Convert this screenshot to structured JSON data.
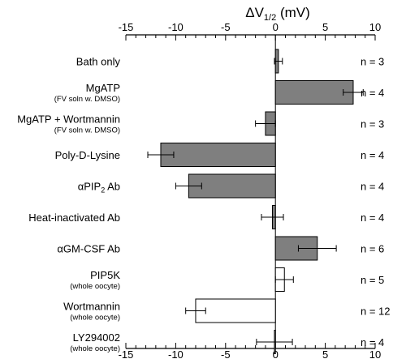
{
  "chart_data": {
    "type": "bar",
    "orientation": "horizontal",
    "title_main": "ΔV",
    "title_sub": "1/2",
    "title_unit": " (mV)",
    "xlim": [
      -15,
      10
    ],
    "major_ticks": [
      -15,
      -10,
      -5,
      0,
      5,
      10
    ],
    "minor_tick_step": 1,
    "categories": [
      {
        "label": "Bath only",
        "sublabel": "",
        "value": 0.3,
        "error": 0.4,
        "fill": "#7f7f7f",
        "n": "n = 3"
      },
      {
        "label": "MgATP",
        "sublabel": "(FV soln w. DMSO)",
        "value": 7.8,
        "error": 1.0,
        "fill": "#7f7f7f",
        "n": "n = 4"
      },
      {
        "label": "MgATP + Wortmannin",
        "sublabel": "(FV soln w. DMSO)",
        "value": -1.0,
        "error": 1.0,
        "fill": "#7f7f7f",
        "n": "n = 3"
      },
      {
        "label": "Poly-D-Lysine",
        "sublabel": "",
        "value": -11.5,
        "error": 1.3,
        "fill": "#7f7f7f",
        "n": "n = 4"
      },
      {
        "label": "αPIP",
        "label_sub": "2",
        "label_suffix": " Ab",
        "sublabel": "",
        "value": -8.7,
        "error": 1.3,
        "fill": "#7f7f7f",
        "n": "n = 4"
      },
      {
        "label": "Heat-inactivated Ab",
        "sublabel": "",
        "value": -0.3,
        "error": 1.1,
        "fill": "#7f7f7f",
        "n": "n = 4"
      },
      {
        "label": "αGM-CSF Ab",
        "sublabel": "",
        "value": 4.2,
        "error": 1.9,
        "fill": "#7f7f7f",
        "n": "n = 6"
      },
      {
        "label": "PIP5K",
        "sublabel": "(whole oocyte)",
        "value": 0.9,
        "error": 0.9,
        "fill": "#ffffff",
        "n": "n = 5"
      },
      {
        "label": "Wortmannin",
        "sublabel": "(whole oocyte)",
        "value": -8.0,
        "error": 1.0,
        "fill": "#ffffff",
        "n": "n = 12"
      },
      {
        "label": "LY294002",
        "sublabel": "(whole oocyte)",
        "value": -0.1,
        "error": 1.8,
        "fill": "#ffffff",
        "n": "n = 4"
      }
    ]
  }
}
